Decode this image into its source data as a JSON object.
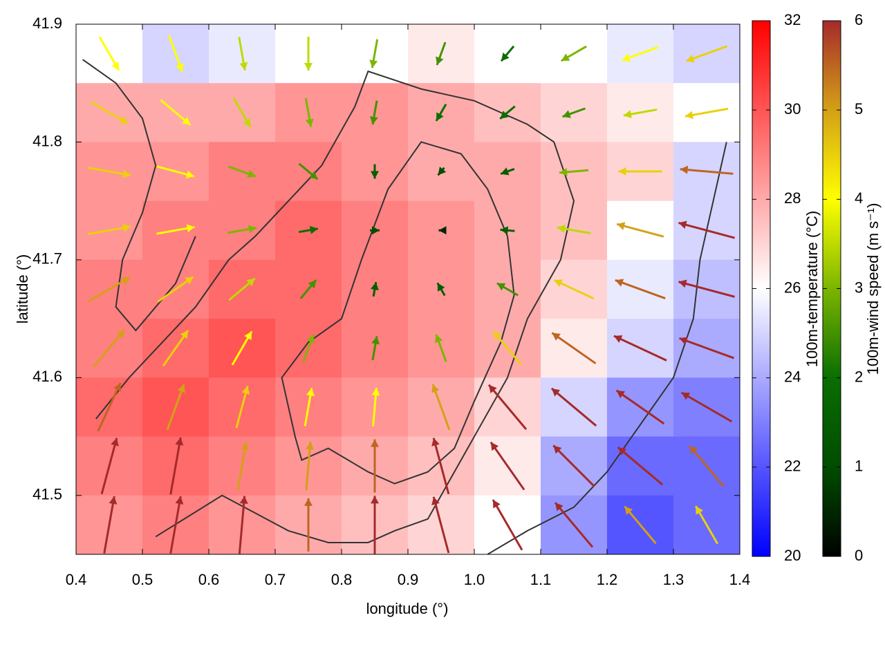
{
  "chart_data": {
    "type": "vector-field",
    "x_label": "longitude (°)",
    "y_label": "latitude (°)",
    "xlim": [
      0.4,
      1.4
    ],
    "ylim": [
      41.45,
      41.9
    ],
    "xticks": [
      0.4,
      0.5,
      0.6,
      0.7,
      0.8,
      0.9,
      {
        "value": 1,
        "label": "1.0"
      },
      1.1,
      1.2,
      1.3,
      1.4
    ],
    "yticks": [
      41.5,
      41.6,
      41.7,
      41.8,
      41.9
    ],
    "temperature": {
      "label": "100m-temperature (°C)",
      "lim": [
        20,
        32
      ],
      "ticks": [
        20,
        22,
        24,
        26,
        28,
        30,
        32
      ],
      "palette": [
        "#0000ff",
        "#ffffff",
        "#ff0000"
      ],
      "lon": [
        0.45,
        0.55,
        0.65,
        0.75,
        0.85,
        0.95,
        1.05,
        1.15,
        1.25,
        1.35
      ],
      "lat": [
        41.875,
        41.825,
        41.775,
        41.725,
        41.675,
        41.625,
        41.575,
        41.525,
        41.475
      ],
      "values": [
        [
          26,
          25,
          25.5,
          26,
          26,
          26.5,
          26,
          26,
          25.5,
          25
        ],
        [
          28,
          28,
          28,
          28.5,
          28.5,
          28,
          27.5,
          27,
          26.5,
          26
        ],
        [
          28.5,
          28.5,
          29,
          29,
          28.5,
          28,
          28,
          27.5,
          27,
          25
        ],
        [
          28.5,
          29,
          29,
          29.5,
          29,
          28.5,
          28,
          27.5,
          26,
          25
        ],
        [
          29,
          29,
          29.5,
          29.5,
          29,
          28.5,
          28,
          27,
          25.5,
          24.5
        ],
        [
          29,
          29.5,
          30,
          29.5,
          29,
          28.5,
          28,
          26.5,
          25,
          24
        ],
        [
          29.5,
          30,
          29.5,
          29,
          28.5,
          28,
          27,
          25,
          23.5,
          23
        ],
        [
          29,
          29.5,
          29,
          28.5,
          28,
          27.5,
          26.5,
          24,
          22.5,
          22.5
        ],
        [
          28.5,
          29,
          28.5,
          28,
          27.5,
          27,
          26,
          23.5,
          22,
          22.5
        ]
      ]
    },
    "wind": {
      "label": "100m-wind speed (m s⁻¹)",
      "lim": [
        0,
        6
      ],
      "ticks": [
        0,
        1,
        2,
        3,
        4,
        5,
        6
      ],
      "palette": [
        "#000000",
        "#004d00",
        "#0a6e00",
        "#7cb500",
        "#ffff00",
        "#d4a017",
        "#a52a2a"
      ],
      "lon": [
        0.45,
        0.55,
        0.65,
        0.75,
        0.85,
        0.95,
        1.05,
        1.15,
        1.25,
        1.35
      ],
      "lat": [
        41.875,
        41.825,
        41.775,
        41.725,
        41.675,
        41.625,
        41.575,
        41.525,
        41.475
      ],
      "speed": [
        [
          4,
          4,
          3.5,
          3.5,
          3,
          2.5,
          2,
          3,
          4,
          4.5
        ],
        [
          4.5,
          4,
          3.5,
          3,
          2.5,
          2,
          2,
          2.5,
          3.5,
          4.5
        ],
        [
          4.5,
          4,
          3,
          2.5,
          1.5,
          1,
          1.5,
          3,
          4.5,
          5.5
        ],
        [
          4.5,
          4,
          3,
          2,
          1,
          0.5,
          1.5,
          3.5,
          5,
          6
        ],
        [
          5,
          4.5,
          3.5,
          2.5,
          1.5,
          1.5,
          2.5,
          4.5,
          5.5,
          6
        ],
        [
          5,
          4.5,
          4,
          3,
          2.5,
          3,
          4.5,
          5.5,
          6,
          6
        ],
        [
          5.5,
          5,
          4.5,
          4,
          4,
          5,
          6,
          6,
          6,
          6
        ],
        [
          6,
          6,
          5,
          5,
          5.5,
          6,
          6,
          6,
          6,
          5.5
        ],
        [
          6,
          6,
          6,
          5.5,
          6,
          6,
          6,
          6,
          5,
          4.5
        ]
      ],
      "direction": [
        [
          150,
          160,
          170,
          180,
          190,
          200,
          220,
          240,
          250,
          250
        ],
        [
          120,
          130,
          150,
          170,
          190,
          210,
          230,
          250,
          260,
          260
        ],
        [
          100,
          105,
          110,
          130,
          180,
          220,
          250,
          265,
          270,
          275
        ],
        [
          80,
          80,
          80,
          80,
          90,
          270,
          275,
          280,
          285,
          285
        ],
        [
          60,
          55,
          50,
          40,
          10,
          330,
          300,
          295,
          290,
          285
        ],
        [
          40,
          35,
          30,
          20,
          10,
          340,
          320,
          305,
          295,
          290
        ],
        [
          25,
          20,
          15,
          10,
          5,
          340,
          320,
          310,
          305,
          300
        ],
        [
          15,
          10,
          10,
          5,
          0,
          345,
          325,
          315,
          310,
          320
        ],
        [
          10,
          10,
          5,
          0,
          0,
          345,
          330,
          320,
          320,
          330
        ]
      ]
    },
    "contours": [
      {
        "lon": [
          0.43,
          0.48,
          0.53,
          0.58,
          0.63,
          0.67,
          0.72,
          0.77,
          0.82,
          0.84,
          0.92,
          1.0,
          1.08,
          1.12,
          1.15,
          1.13,
          1.08,
          1.05,
          1.0,
          0.96,
          0.93,
          0.88,
          0.84,
          0.78,
          0.72,
          0.62,
          0.52
        ],
        "lat": [
          41.565,
          41.6,
          41.63,
          41.66,
          41.7,
          41.72,
          41.75,
          41.78,
          41.83,
          41.86,
          41.845,
          41.835,
          41.815,
          41.8,
          41.75,
          41.7,
          41.65,
          41.6,
          41.55,
          41.51,
          41.48,
          41.47,
          41.46,
          41.46,
          41.47,
          41.5,
          41.465
        ]
      },
      {
        "lon": [
          0.73,
          0.71,
          0.75,
          0.8,
          0.83,
          0.87,
          0.92,
          0.98,
          1.02,
          1.05,
          1.06,
          1.04,
          1.0,
          0.97,
          0.93,
          0.88,
          0.84,
          0.78,
          0.74,
          0.73
        ],
        "lat": [
          41.55,
          41.6,
          41.63,
          41.65,
          41.7,
          41.76,
          41.8,
          41.79,
          41.76,
          41.72,
          41.67,
          41.63,
          41.58,
          41.54,
          41.52,
          41.51,
          41.52,
          41.54,
          41.53,
          41.55
        ]
      },
      {
        "lon": [
          0.41,
          0.46,
          0.5,
          0.52,
          0.5,
          0.47,
          0.46,
          0.49,
          0.55,
          0.58
        ],
        "lat": [
          41.87,
          41.85,
          41.82,
          41.78,
          41.74,
          41.7,
          41.66,
          41.64,
          41.68,
          41.72
        ]
      },
      {
        "lon": [
          1.02,
          1.08,
          1.15,
          1.2,
          1.25,
          1.3,
          1.33,
          1.34,
          1.36,
          1.38
        ],
        "lat": [
          41.45,
          41.47,
          41.49,
          41.52,
          41.56,
          41.6,
          41.65,
          41.7,
          41.75,
          41.8
        ]
      }
    ]
  }
}
